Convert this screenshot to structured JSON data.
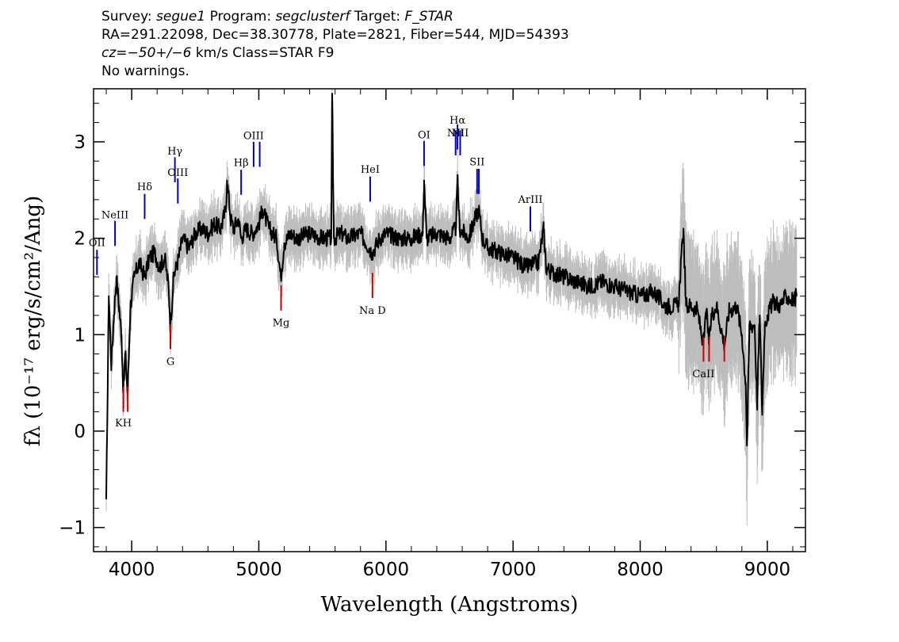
{
  "header": {
    "line1": {
      "survey_label": "Survey: ",
      "survey": "segue1",
      "program_label": " Program: ",
      "program": "segclusterf",
      "target_label": " Target: ",
      "target": "F_STAR"
    },
    "line2": "RA=291.22098, Dec=38.30778, Plate=2821, Fiber=544, MJD=54393",
    "line3": {
      "cz": "cz=−50+/−6",
      "rest": " km/s Class=STAR F9"
    },
    "line4": "No warnings."
  },
  "chart_data": {
    "type": "line",
    "title": "",
    "xlabel": "Wavelength (Angstroms)",
    "ylabel": "fλ (10⁻¹⁷ erg/s/cm²/Ang)",
    "xlim": [
      3700,
      9300
    ],
    "ylim": [
      -1.25,
      3.55
    ],
    "x_ticks": [
      4000,
      5000,
      6000,
      7000,
      8000,
      9000
    ],
    "y_ticks": [
      -1,
      0,
      1,
      2,
      3
    ],
    "grid": false,
    "colors": {
      "flux": "#000000",
      "error": "#bdbdbd",
      "emission": "#0000cc",
      "absorption": "#cc0000"
    },
    "series": [
      {
        "name": "flux",
        "x": [
          3800,
          3820,
          3840,
          3860,
          3880,
          3900,
          3920,
          3934,
          3950,
          3968,
          3990,
          4020,
          4060,
          4101,
          4140,
          4180,
          4220,
          4260,
          4290,
          4305,
          4330,
          4340,
          4370,
          4400,
          4450,
          4500,
          4550,
          4600,
          4650,
          4700,
          4740,
          4750,
          4780,
          4800,
          4840,
          4861,
          4900,
          4950,
          5000,
          5030,
          5080,
          5140,
          5173,
          5200,
          5250,
          5300,
          5400,
          5500,
          5570,
          5577,
          5590,
          5650,
          5700,
          5800,
          5893,
          5950,
          6000,
          6100,
          6200,
          6290,
          6300,
          6320,
          6400,
          6500,
          6550,
          6563,
          6580,
          6650,
          6700,
          6730,
          6760,
          6800,
          6900,
          7000,
          7100,
          7200,
          7240,
          7260,
          7300,
          7400,
          7500,
          7600,
          7700,
          7800,
          7900,
          8000,
          8100,
          8200,
          8300,
          8340,
          8360,
          8400,
          8450,
          8498,
          8520,
          8542,
          8560,
          8600,
          8662,
          8700,
          8760,
          8800,
          8830,
          8840,
          8860,
          8900,
          8920,
          8940,
          8960,
          8980,
          9000,
          9050,
          9100,
          9150,
          9200,
          9230
        ],
        "y": [
          -0.7,
          1.4,
          0.7,
          1.2,
          1.6,
          1.3,
          1.0,
          0.4,
          0.8,
          0.4,
          1.3,
          1.6,
          1.75,
          1.6,
          1.8,
          1.85,
          1.7,
          1.8,
          1.5,
          1.1,
          1.6,
          1.65,
          1.8,
          2.0,
          1.9,
          2.05,
          2.1,
          2.05,
          2.15,
          2.1,
          2.3,
          2.6,
          2.2,
          2.1,
          2.2,
          2.0,
          2.1,
          2.05,
          2.15,
          2.3,
          2.1,
          2.0,
          1.6,
          1.95,
          2.05,
          2.0,
          2.05,
          2.0,
          2.0,
          3.5,
          2.0,
          2.05,
          2.0,
          2.05,
          1.85,
          2.0,
          2.05,
          2.0,
          2.0,
          2.05,
          2.6,
          2.0,
          2.05,
          2.0,
          2.1,
          2.6,
          2.1,
          2.0,
          2.2,
          2.3,
          2.0,
          1.9,
          1.85,
          1.8,
          1.7,
          1.75,
          2.1,
          1.7,
          1.65,
          1.6,
          1.55,
          1.5,
          1.55,
          1.5,
          1.45,
          1.4,
          1.45,
          1.3,
          1.3,
          2.1,
          1.3,
          1.3,
          1.25,
          0.9,
          1.25,
          0.9,
          1.2,
          1.3,
          0.9,
          1.25,
          1.3,
          1.0,
          0.5,
          -0.15,
          1.1,
          1.1,
          0.3,
          1.2,
          0.2,
          1.1,
          1.2,
          1.35,
          1.3,
          1.4,
          1.35,
          1.4
        ]
      }
    ],
    "emission_lines": [
      {
        "label": "OII",
        "wavelength": 3727,
        "y_low": 1.62,
        "y_high": 1.88,
        "label_y": 1.95
      },
      {
        "label": "NeIII",
        "wavelength": 3869,
        "y_low": 1.92,
        "y_high": 2.18,
        "label_y": 2.24
      },
      {
        "label": "Hδ",
        "wavelength": 4102,
        "y_low": 2.2,
        "y_high": 2.46,
        "label_y": 2.53
      },
      {
        "label": "Hγ",
        "wavelength": 4340,
        "y_low": 2.58,
        "y_high": 2.84,
        "label_y": 2.9
      },
      {
        "label": "OIII",
        "wavelength": 4363,
        "y_low": 2.36,
        "y_high": 2.62,
        "label_y": 2.68
      },
      {
        "label": "Hβ",
        "wavelength": 4861,
        "y_low": 2.45,
        "y_high": 2.71,
        "label_y": 2.78
      },
      {
        "label": "OIII",
        "wavelength": 4959,
        "y_low": 2.74,
        "y_high": 3.0,
        "label_y": 3.06
      },
      {
        "label": "",
        "wavelength": 5007,
        "y_low": 2.74,
        "y_high": 3.0,
        "label_y": 3.06
      },
      {
        "label": "HeI",
        "wavelength": 5876,
        "y_low": 2.38,
        "y_high": 2.64,
        "label_y": 2.71
      },
      {
        "label": "OI",
        "wavelength": 6300,
        "y_low": 2.75,
        "y_high": 3.01,
        "label_y": 3.07
      },
      {
        "label": "NII",
        "wavelength": 6548,
        "y_low": 2.86,
        "y_high": 3.12,
        "label_y": 3.09
      },
      {
        "label": "Hα",
        "wavelength": 6563,
        "y_low": 2.92,
        "y_high": 3.18,
        "label_y": 3.22
      },
      {
        "label": "NII",
        "wavelength": 6584,
        "y_low": 2.86,
        "y_high": 3.12,
        "label_y": 3.09
      },
      {
        "label": "SII",
        "wavelength": 6717,
        "y_low": 2.46,
        "y_high": 2.72,
        "label_y": 2.79
      },
      {
        "label": "",
        "wavelength": 6731,
        "y_low": 2.46,
        "y_high": 2.72,
        "label_y": 2.79
      },
      {
        "label": "ArIII",
        "wavelength": 7136,
        "y_low": 2.07,
        "y_high": 2.33,
        "label_y": 2.4
      }
    ],
    "absorption_lines": [
      {
        "label": "KH",
        "wavelength": 3934,
        "y_low": 0.2,
        "y_high": 0.46,
        "label_y": 0.08
      },
      {
        "label": "",
        "wavelength": 3969,
        "y_low": 0.2,
        "y_high": 0.46,
        "label_y": 0.08
      },
      {
        "label": "G",
        "wavelength": 4305,
        "y_low": 0.85,
        "y_high": 1.11,
        "label_y": 0.72
      },
      {
        "label": "Mg",
        "wavelength": 5175,
        "y_low": 1.25,
        "y_high": 1.51,
        "label_y": 1.12
      },
      {
        "label": "Na D",
        "wavelength": 5894,
        "y_low": 1.38,
        "y_high": 1.64,
        "label_y": 1.25
      },
      {
        "label": "CaII",
        "wavelength": 8498,
        "y_low": 0.72,
        "y_high": 0.98,
        "label_y": 0.59
      },
      {
        "label": "",
        "wavelength": 8542,
        "y_low": 0.72,
        "y_high": 0.98,
        "label_y": 0.59
      },
      {
        "label": "",
        "wavelength": 8662,
        "y_low": 0.72,
        "y_high": 0.98,
        "label_y": 0.59
      }
    ]
  }
}
